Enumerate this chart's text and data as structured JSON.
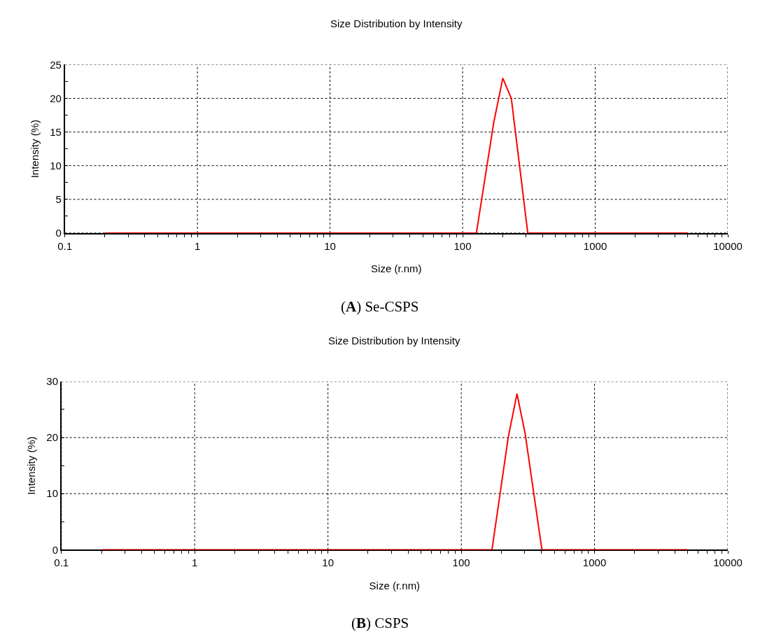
{
  "chart_data": [
    {
      "type": "line",
      "title": "Size Distribution by Intensity",
      "xlabel": "Size (r.nm)",
      "ylabel": "Intensity (%)",
      "annotations": [
        "(A) Se-CSPS"
      ],
      "log": "x",
      "grid": true,
      "marker": "none",
      "line_style": "solid",
      "x": [
        0.2,
        127,
        172,
        201,
        233,
        310,
        5000
      ],
      "series": [
        {
          "color": "#ff0000",
          "values": [
            0,
            0,
            16.5,
            23,
            20,
            0,
            0
          ]
        }
      ],
      "xlim": [
        0.1,
        10000
      ],
      "ylim": [
        0,
        25
      ],
      "xticks": [
        0.1,
        {
          "value": 0.2,
          "label": null
        },
        {
          "value": 0.3,
          "label": null
        },
        {
          "value": 0.4,
          "label": null
        },
        {
          "value": 0.5,
          "label": null
        },
        {
          "value": 0.6,
          "label": null
        },
        {
          "value": 0.7,
          "label": null
        },
        {
          "value": 0.8,
          "label": null
        },
        {
          "value": 0.9,
          "label": null
        },
        1,
        {
          "value": 2,
          "label": null
        },
        {
          "value": 3,
          "label": null
        },
        {
          "value": 4,
          "label": null
        },
        {
          "value": 5,
          "label": null
        },
        {
          "value": 6,
          "label": null
        },
        {
          "value": 7,
          "label": null
        },
        {
          "value": 8,
          "label": null
        },
        {
          "value": 9,
          "label": null
        },
        10,
        {
          "value": 20,
          "label": null
        },
        {
          "value": 30,
          "label": null
        },
        {
          "value": 40,
          "label": null
        },
        {
          "value": 50,
          "label": null
        },
        {
          "value": 60,
          "label": null
        },
        {
          "value": 70,
          "label": null
        },
        {
          "value": 80,
          "label": null
        },
        {
          "value": 90,
          "label": null
        },
        100,
        {
          "value": 200,
          "label": null
        },
        {
          "value": 300,
          "label": null
        },
        {
          "value": 400,
          "label": null
        },
        {
          "value": 500,
          "label": null
        },
        {
          "value": 600,
          "label": null
        },
        {
          "value": 700,
          "label": null
        },
        {
          "value": 800,
          "label": null
        },
        {
          "value": 900,
          "label": null
        },
        1000,
        {
          "value": 2000,
          "label": null
        },
        {
          "value": 3000,
          "label": null
        },
        {
          "value": 4000,
          "label": null
        },
        {
          "value": 5000,
          "label": null
        },
        {
          "value": 6000,
          "label": null
        },
        {
          "value": 7000,
          "label": null
        },
        {
          "value": 8000,
          "label": null
        },
        {
          "value": 9000,
          "label": null
        },
        10000
      ],
      "yticks": [
        0,
        {
          "value": 2.5,
          "label": null
        },
        5,
        {
          "value": 7.5,
          "label": null
        },
        10,
        {
          "value": 12.5,
          "label": null
        },
        15,
        {
          "value": 17.5,
          "label": null
        },
        20,
        {
          "value": 22.5,
          "label": null
        },
        25
      ]
    },
    {
      "type": "line",
      "title": "Size Distribution by Intensity",
      "xlabel": "Size (r.nm)",
      "ylabel": "Intensity (%)",
      "annotations": [
        "(B) CSPS"
      ],
      "log": "x",
      "grid": true,
      "marker": "none",
      "line_style": "solid",
      "x": [
        0.2,
        170,
        225,
        262,
        302,
        403,
        5000
      ],
      "series": [
        {
          "color": "#ff0000",
          "values": [
            0,
            0,
            20,
            27.8,
            20.6,
            0,
            0
          ]
        }
      ],
      "xlim": [
        0.1,
        10000
      ],
      "ylim": [
        0,
        30
      ],
      "xticks": [
        0.1,
        {
          "value": 0.2,
          "label": null
        },
        {
          "value": 0.3,
          "label": null
        },
        {
          "value": 0.4,
          "label": null
        },
        {
          "value": 0.5,
          "label": null
        },
        {
          "value": 0.6,
          "label": null
        },
        {
          "value": 0.7,
          "label": null
        },
        {
          "value": 0.8,
          "label": null
        },
        {
          "value": 0.9,
          "label": null
        },
        1,
        {
          "value": 2,
          "label": null
        },
        {
          "value": 3,
          "label": null
        },
        {
          "value": 4,
          "label": null
        },
        {
          "value": 5,
          "label": null
        },
        {
          "value": 6,
          "label": null
        },
        {
          "value": 7,
          "label": null
        },
        {
          "value": 8,
          "label": null
        },
        {
          "value": 9,
          "label": null
        },
        10,
        {
          "value": 20,
          "label": null
        },
        {
          "value": 30,
          "label": null
        },
        {
          "value": 40,
          "label": null
        },
        {
          "value": 50,
          "label": null
        },
        {
          "value": 60,
          "label": null
        },
        {
          "value": 70,
          "label": null
        },
        {
          "value": 80,
          "label": null
        },
        {
          "value": 90,
          "label": null
        },
        100,
        {
          "value": 200,
          "label": null
        },
        {
          "value": 300,
          "label": null
        },
        {
          "value": 400,
          "label": null
        },
        {
          "value": 500,
          "label": null
        },
        {
          "value": 600,
          "label": null
        },
        {
          "value": 700,
          "label": null
        },
        {
          "value": 800,
          "label": null
        },
        {
          "value": 900,
          "label": null
        },
        1000,
        {
          "value": 2000,
          "label": null
        },
        {
          "value": 3000,
          "label": null
        },
        {
          "value": 4000,
          "label": null
        },
        {
          "value": 5000,
          "label": null
        },
        {
          "value": 6000,
          "label": null
        },
        {
          "value": 7000,
          "label": null
        },
        {
          "value": 8000,
          "label": null
        },
        {
          "value": 9000,
          "label": null
        },
        10000
      ],
      "yticks": [
        0,
        {
          "value": 5,
          "label": null
        },
        10,
        {
          "value": 15,
          "label": null
        },
        20,
        {
          "value": 25,
          "label": null
        },
        30
      ]
    }
  ]
}
